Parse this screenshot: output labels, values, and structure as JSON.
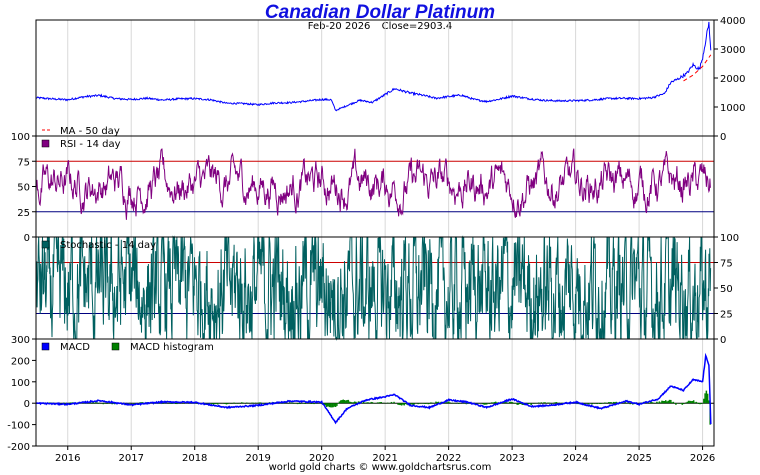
{
  "title": "Canadian Dollar Platinum",
  "info": {
    "date": "Feb-20  2026",
    "close": "Close=2903.4"
  },
  "footer": "world gold charts © www.goldchartsrus.com",
  "colors": {
    "price": "#0000ff",
    "ma": "#ff0000",
    "rsi": "#800080",
    "stoch": "#006060",
    "macd": "#0000ff",
    "hist": "#008000",
    "level_high": "#cc0000",
    "level_low": "#000080"
  },
  "chart_data": [
    {
      "type": "line",
      "name": "price",
      "title": "Canadian Dollar Platinum",
      "ylim": [
        0,
        4000
      ],
      "yticks": [
        "4000",
        "3000",
        "2000",
        "1000",
        "0"
      ],
      "legend": [
        {
          "label": "MA - 50 day",
          "color": "#ff0000"
        }
      ],
      "series": [
        {
          "name": "Close",
          "x": [
            2015.5,
            2015.75,
            2016.0,
            2016.25,
            2016.5,
            2016.75,
            2017.0,
            2017.25,
            2017.5,
            2017.75,
            2018.0,
            2018.25,
            2018.5,
            2018.75,
            2019.0,
            2019.25,
            2019.5,
            2019.75,
            2020.0,
            2020.15,
            2020.22,
            2020.4,
            2020.6,
            2020.8,
            2021.0,
            2021.15,
            2021.4,
            2021.6,
            2021.8,
            2022.0,
            2022.2,
            2022.4,
            2022.6,
            2022.8,
            2023.0,
            2023.25,
            2023.5,
            2023.75,
            2024.0,
            2024.25,
            2024.5,
            2024.75,
            2025.0,
            2025.2,
            2025.4,
            2025.5,
            2025.6,
            2025.75,
            2025.85,
            2025.95,
            2026.0,
            2026.05,
            2026.1,
            2026.13
          ],
          "values": [
            1320,
            1280,
            1250,
            1350,
            1400,
            1290,
            1260,
            1300,
            1240,
            1280,
            1290,
            1250,
            1130,
            1120,
            1080,
            1140,
            1150,
            1200,
            1260,
            1250,
            880,
            1050,
            1230,
            1160,
            1430,
            1630,
            1480,
            1400,
            1300,
            1360,
            1410,
            1260,
            1190,
            1270,
            1380,
            1290,
            1230,
            1210,
            1220,
            1240,
            1290,
            1300,
            1290,
            1320,
            1460,
            1850,
            1950,
            2150,
            2450,
            2300,
            2700,
            3300,
            3900,
            2903
          ]
        },
        {
          "name": "MA - 50 day",
          "x": [
            2025.7,
            2025.85,
            2026.0,
            2026.13
          ],
          "values": [
            1900,
            2100,
            2400,
            2800
          ]
        }
      ]
    },
    {
      "type": "line",
      "name": "rsi",
      "ylim": [
        0,
        100
      ],
      "yticks": [
        "100",
        "75",
        "50",
        "25",
        "0"
      ],
      "levels": [
        75,
        25
      ],
      "legend": [
        {
          "label": "RSI - 14 day",
          "color": "#800080"
        }
      ]
    },
    {
      "type": "line",
      "name": "stochastic",
      "ylim": [
        0,
        100
      ],
      "yticks": [
        "100",
        "75",
        "50",
        "25",
        "0"
      ],
      "levels": [
        75,
        25
      ],
      "legend": [
        {
          "label": "Stochastic - 14 day",
          "color": "#006060"
        }
      ]
    },
    {
      "type": "line",
      "name": "macd",
      "ylim": [
        -200,
        300
      ],
      "yticks": [
        "300",
        "200",
        "100",
        "0",
        "-100",
        "-200"
      ],
      "legend": [
        {
          "label": "MACD",
          "color": "#0000ff"
        },
        {
          "label": "MACD histogram",
          "color": "#008000"
        }
      ],
      "series": [
        {
          "name": "MACD",
          "x": [
            2015.5,
            2016.0,
            2016.5,
            2017.0,
            2017.5,
            2018.0,
            2018.5,
            2019.0,
            2019.5,
            2020.0,
            2020.22,
            2020.4,
            2020.7,
            2021.0,
            2021.15,
            2021.4,
            2021.7,
            2022.0,
            2022.3,
            2022.6,
            2023.0,
            2023.3,
            2023.6,
            2024.0,
            2024.4,
            2024.8,
            2025.0,
            2025.3,
            2025.5,
            2025.7,
            2025.85,
            2026.0,
            2026.05,
            2026.1,
            2026.13
          ],
          "values": [
            0,
            -5,
            12,
            -8,
            6,
            4,
            -20,
            -10,
            10,
            5,
            -90,
            -25,
            15,
            30,
            40,
            -10,
            -20,
            15,
            5,
            -20,
            20,
            -15,
            -10,
            5,
            -25,
            10,
            -5,
            20,
            80,
            60,
            110,
            100,
            220,
            180,
            -100
          ]
        }
      ]
    }
  ],
  "xaxis": {
    "xlim": [
      2015.5,
      2026.18
    ],
    "ticks": [
      "2016",
      "2017",
      "2018",
      "2019",
      "2020",
      "2021",
      "2022",
      "2023",
      "2024",
      "2025",
      "2026"
    ]
  }
}
